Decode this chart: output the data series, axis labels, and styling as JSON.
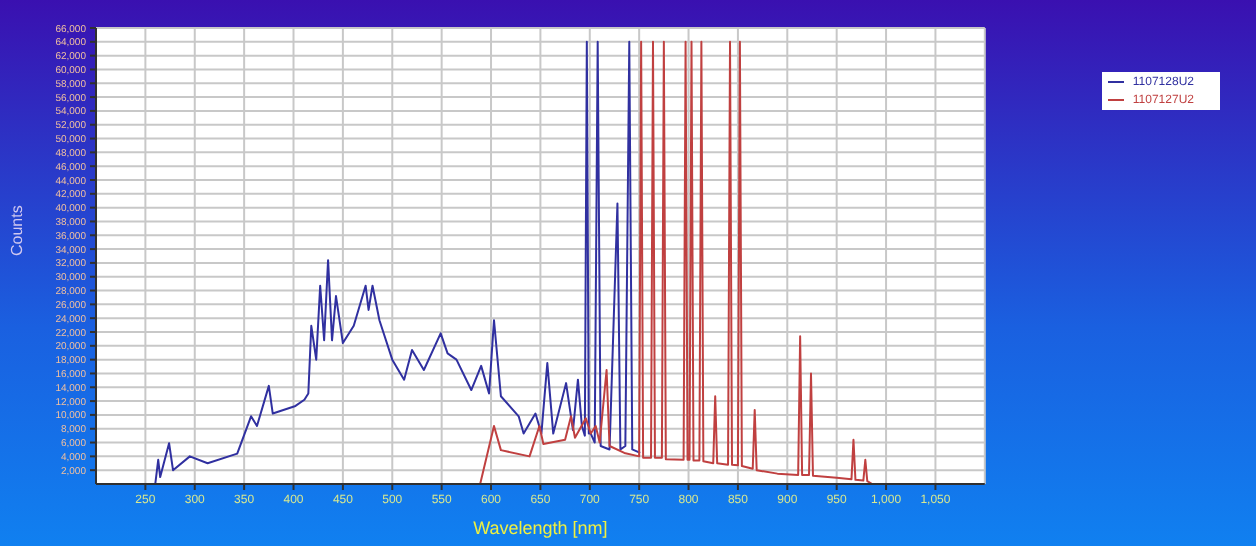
{
  "chart_data": {
    "type": "line",
    "xlabel": "Wavelength [nm]",
    "ylabel": "Counts",
    "xlim": [
      200,
      1100
    ],
    "xticks": [
      250,
      300,
      350,
      400,
      450,
      500,
      550,
      600,
      650,
      700,
      750,
      800,
      850,
      900,
      950,
      {
        "value": 1000,
        "label": "1,000"
      },
      {
        "value": 1050,
        "label": "1,050"
      }
    ],
    "ylim": [
      0,
      66000
    ],
    "yticks": [
      {
        "value": 2000,
        "label": "2,000"
      },
      {
        "value": 4000,
        "label": "4,000"
      },
      {
        "value": 6000,
        "label": "6,000"
      },
      {
        "value": 8000,
        "label": "8,000"
      },
      {
        "value": 10000,
        "label": "10,000"
      },
      {
        "value": 12000,
        "label": "12,000"
      },
      {
        "value": 14000,
        "label": "14,000"
      },
      {
        "value": 16000,
        "label": "16,000"
      },
      {
        "value": 18000,
        "label": "18,000"
      },
      {
        "value": 20000,
        "label": "20,000"
      },
      {
        "value": 22000,
        "label": "22,000"
      },
      {
        "value": 24000,
        "label": "24,000"
      },
      {
        "value": 26000,
        "label": "26,000"
      },
      {
        "value": 28000,
        "label": "28,000"
      },
      {
        "value": 30000,
        "label": "30,000"
      },
      {
        "value": 32000,
        "label": "32,000"
      },
      {
        "value": 34000,
        "label": "34,000"
      },
      {
        "value": 36000,
        "label": "36,000"
      },
      {
        "value": 38000,
        "label": "38,000"
      },
      {
        "value": 40000,
        "label": "40,000"
      },
      {
        "value": 42000,
        "label": "42,000"
      },
      {
        "value": 44000,
        "label": "44,000"
      },
      {
        "value": 46000,
        "label": "46,000"
      },
      {
        "value": 48000,
        "label": "48,000"
      },
      {
        "value": 50000,
        "label": "50,000"
      },
      {
        "value": 52000,
        "label": "52,000"
      },
      {
        "value": 54000,
        "label": "54,000"
      },
      {
        "value": 56000,
        "label": "56,000"
      },
      {
        "value": 58000,
        "label": "58,000"
      },
      {
        "value": 60000,
        "label": "60,000"
      },
      {
        "value": 62000,
        "label": "62,000"
      },
      {
        "value": 64000,
        "label": "64,000"
      },
      {
        "value": 66000,
        "label": "66,000"
      }
    ],
    "grid": true,
    "legend": "top right",
    "marker": "none",
    "line_style": "solid",
    "series": [
      {
        "name": "1107128U2",
        "color": "#3030a0",
        "x": [
          260,
          263,
          265,
          274,
          278,
          295,
          313,
          343,
          357,
          363,
          375,
          379,
          402,
          411,
          415,
          418,
          423,
          427,
          431,
          435,
          439,
          443,
          450,
          461,
          473,
          476,
          480,
          487,
          500,
          512,
          520,
          532,
          549,
          556,
          565,
          580,
          590,
          598,
          603,
          610,
          628,
          633,
          645,
          651,
          657,
          663,
          676,
          683,
          688,
          692,
          695,
          697,
          699,
          701,
          705,
          708,
          711,
          720,
          728,
          731,
          736,
          740,
          743,
          751
        ],
        "values": [
          0,
          3500,
          1000,
          5900,
          2000,
          4000,
          3000,
          4400,
          9800,
          8400,
          14200,
          10200,
          11300,
          12200,
          13100,
          22900,
          18000,
          28700,
          20800,
          32400,
          20800,
          27200,
          20400,
          22900,
          28700,
          25200,
          28700,
          23700,
          18000,
          15100,
          19400,
          16500,
          21800,
          18900,
          18000,
          13600,
          17100,
          13100,
          23700,
          12700,
          9800,
          7300,
          10200,
          7300,
          17500,
          7300,
          14600,
          7800,
          15100,
          8400,
          7000,
          64000,
          7300,
          7300,
          6000,
          64000,
          5500,
          5000,
          40600,
          5000,
          5500,
          64000,
          5000,
          4500
        ]
      },
      {
        "name": "1107127U2",
        "color": "#c04040",
        "x": [
          589,
          603,
          610,
          639,
          649,
          653,
          675,
          681,
          685,
          696,
          701,
          706,
          710,
          717,
          720,
          735,
          750,
          752,
          754,
          762,
          764,
          766,
          773,
          775,
          777,
          795,
          797,
          799,
          801,
          803,
          805,
          811,
          813,
          815,
          825,
          827,
          829,
          840,
          842,
          844,
          850,
          852,
          854,
          865,
          867,
          869,
          890,
          911,
          913,
          915,
          922,
          924,
          926,
          950,
          965,
          967,
          969,
          977,
          979,
          981,
          986
        ],
        "values": [
          0,
          8400,
          4900,
          4000,
          8400,
          5800,
          6400,
          9800,
          6700,
          9500,
          7300,
          8400,
          6000,
          16500,
          5500,
          4500,
          4000,
          64000,
          3800,
          3800,
          64000,
          3800,
          3800,
          64000,
          3600,
          3500,
          64000,
          3500,
          3500,
          64000,
          3400,
          3400,
          64000,
          3300,
          3000,
          12700,
          3000,
          2800,
          64000,
          2800,
          2700,
          64000,
          2600,
          2200,
          10700,
          2000,
          1500,
          1300,
          21400,
          1300,
          1300,
          16000,
          1200,
          900,
          700,
          6400,
          600,
          500,
          3500,
          400,
          0
        ]
      }
    ]
  }
}
